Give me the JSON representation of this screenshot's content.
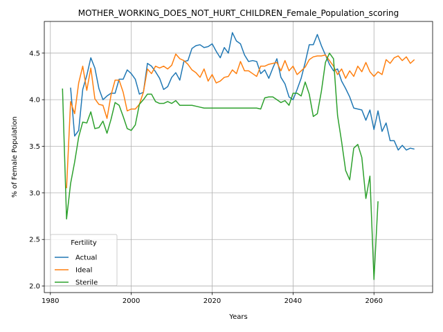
{
  "chart_data": {
    "type": "line",
    "title": "MOTHER_WORKING_DOES_NOT_HURT_CHILDREN_Female_Population_scoring",
    "xlabel": "Years",
    "ylabel": "% of Female Population",
    "xlim": [
      1978.5,
      2074.5
    ],
    "ylim": [
      1.93,
      4.84
    ],
    "xticks": [
      1980,
      2000,
      2020,
      2040,
      2060
    ],
    "yticks": [
      2.0,
      2.5,
      3.0,
      3.5,
      4.0,
      4.5
    ],
    "grid": true,
    "legend": {
      "title": "Fertility",
      "placement": "lower-left"
    },
    "x": [
      1983,
      1984,
      1985,
      1986,
      1987,
      1988,
      1989,
      1990,
      1991,
      1992,
      1993,
      1994,
      1995,
      1996,
      1997,
      1998,
      1999,
      2000,
      2001,
      2002,
      2003,
      2004,
      2005,
      2006,
      2007,
      2008,
      2009,
      2010,
      2011,
      2012,
      2013,
      2014,
      2015,
      2016,
      2017,
      2018,
      2019,
      2020,
      2021,
      2022,
      2023,
      2024,
      2025,
      2026,
      2027,
      2028,
      2029,
      2030,
      2031,
      2032,
      2033,
      2034,
      2035,
      2036,
      2037,
      2038,
      2039,
      2040,
      2041,
      2042,
      2043,
      2044,
      2045,
      2046,
      2047,
      2048,
      2049,
      2050,
      2051,
      2052,
      2053,
      2054,
      2055,
      2056,
      2057,
      2058,
      2059,
      2060,
      2061,
      2062,
      2063,
      2064,
      2065,
      2066,
      2067,
      2068,
      2069,
      2070
    ],
    "series": [
      {
        "name": "Actual",
        "color": "#1f77b4",
        "values": [
          null,
          null,
          4.13,
          3.61,
          3.67,
          4.11,
          4.26,
          4.45,
          4.34,
          4.12,
          4.0,
          4.04,
          4.07,
          4.07,
          4.22,
          4.22,
          4.32,
          4.28,
          4.22,
          4.06,
          4.08,
          4.39,
          4.36,
          4.3,
          4.23,
          4.11,
          4.14,
          4.24,
          4.29,
          4.21,
          4.41,
          4.42,
          4.55,
          4.58,
          4.59,
          4.56,
          4.57,
          4.6,
          4.52,
          4.45,
          4.56,
          4.5,
          4.72,
          4.63,
          4.6,
          4.48,
          4.41,
          4.42,
          4.41,
          4.28,
          4.32,
          4.23,
          4.34,
          4.44,
          4.24,
          4.17,
          4.03,
          4.0,
          4.11,
          4.23,
          4.4,
          4.59,
          4.59,
          4.7,
          4.58,
          4.48,
          4.38,
          4.31,
          4.33,
          4.2,
          4.12,
          4.03,
          3.91,
          3.9,
          3.89,
          3.78,
          3.89,
          3.68,
          3.88,
          3.66,
          3.75,
          3.56,
          3.56,
          3.46,
          3.51,
          3.46,
          3.48,
          3.47
        ]
      },
      {
        "name": "Ideal",
        "color": "#ff7f0e",
        "values": [
          null,
          3.05,
          3.98,
          3.85,
          4.18,
          4.36,
          4.1,
          4.34,
          4.01,
          3.95,
          3.94,
          3.8,
          4.05,
          4.21,
          4.21,
          4.08,
          3.88,
          3.9,
          3.9,
          3.95,
          4.08,
          4.33,
          4.28,
          4.36,
          4.34,
          4.36,
          4.33,
          4.37,
          4.49,
          4.44,
          4.42,
          4.38,
          4.32,
          4.29,
          4.24,
          4.33,
          4.2,
          4.27,
          4.18,
          4.2,
          4.24,
          4.25,
          4.32,
          4.28,
          4.41,
          4.31,
          4.31,
          4.28,
          4.25,
          4.36,
          4.36,
          4.38,
          4.39,
          4.4,
          4.31,
          4.42,
          4.31,
          4.36,
          4.27,
          4.31,
          4.35,
          4.43,
          4.46,
          4.47,
          4.47,
          4.48,
          4.42,
          4.36,
          4.27,
          4.33,
          4.23,
          4.31,
          4.25,
          4.36,
          4.3,
          4.4,
          4.3,
          4.25,
          4.3,
          4.27,
          4.43,
          4.39,
          4.45,
          4.47,
          4.42,
          4.46,
          4.39,
          4.43
        ]
      },
      {
        "name": "Sterile",
        "color": "#2ca02c",
        "values": [
          4.12,
          2.72,
          3.1,
          3.33,
          3.6,
          3.76,
          3.75,
          3.87,
          3.69,
          3.7,
          3.77,
          3.64,
          3.79,
          3.97,
          3.94,
          3.82,
          3.69,
          3.67,
          3.73,
          3.95,
          4.0,
          4.06,
          4.06,
          3.98,
          3.96,
          3.96,
          3.98,
          3.96,
          3.99,
          3.94,
          3.94,
          3.94,
          3.94,
          3.93,
          3.92,
          3.91,
          3.91,
          3.91,
          3.91,
          3.91,
          3.91,
          3.91,
          3.91,
          3.91,
          3.91,
          3.91,
          3.91,
          3.91,
          3.91,
          3.9,
          4.02,
          4.03,
          4.03,
          4.0,
          3.97,
          3.99,
          3.94,
          4.07,
          4.07,
          4.04,
          4.19,
          4.06,
          3.82,
          3.85,
          4.09,
          4.4,
          4.5,
          4.44,
          3.83,
          3.55,
          3.24,
          3.14,
          3.48,
          3.52,
          3.38,
          2.94,
          3.18,
          2.07,
          2.91,
          null,
          null,
          null,
          null,
          null,
          null,
          null,
          null,
          null
        ]
      }
    ]
  }
}
